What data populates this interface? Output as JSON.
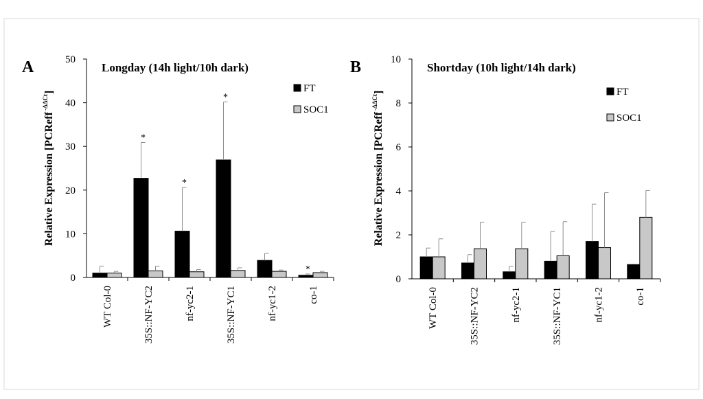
{
  "chart_data": [
    {
      "type": "bar",
      "panel": "A",
      "title": "Longday (14h light/10h dark)",
      "ylabel": "Relative Expression [PCReff",
      "ylabel_sup": "-ΔΔCt",
      "ylabel_close": "]",
      "ylim": [
        0,
        50
      ],
      "yticks": [
        0,
        10,
        20,
        30,
        40,
        50
      ],
      "categories": [
        "WT   Col-0",
        "35S::NF-YC2",
        "nf-yc2-1",
        "35S::NF-YC1",
        "nf-yc1-2",
        "co-1"
      ],
      "series": [
        {
          "name": "FT",
          "color": "#000000",
          "values": [
            1.0,
            22.7,
            10.6,
            26.9,
            3.9,
            0.5
          ],
          "errors": [
            1.6,
            8.2,
            10.0,
            13.3,
            1.6,
            0.3
          ]
        },
        {
          "name": "SOC1",
          "color": "#c8c8c8",
          "values": [
            1.0,
            1.5,
            1.3,
            1.6,
            1.4,
            1.1
          ],
          "errors": [
            0.4,
            1.1,
            0.5,
            0.6,
            0.3,
            0.3
          ]
        }
      ],
      "annotations": [
        {
          "text": "*",
          "series": "FT",
          "category": "35S::NF-YC2"
        },
        {
          "text": "*",
          "series": "FT",
          "category": "nf-yc2-1"
        },
        {
          "text": "*",
          "series": "FT",
          "category": "35S::NF-YC1"
        },
        {
          "text": "*",
          "series": "FT",
          "category": "co-1"
        }
      ],
      "legend": "top-right"
    },
    {
      "type": "bar",
      "panel": "B",
      "title": "Shortday (10h light/14h dark)",
      "ylabel": "Relative Expression [PCReff",
      "ylabel_sup": "-ΔΔCt",
      "ylabel_close": "]",
      "ylim": [
        0,
        10
      ],
      "yticks": [
        0,
        2,
        4,
        6,
        8,
        10
      ],
      "categories": [
        "WT   Col-0",
        "35S::NF-YC2",
        "nf-yc2-1",
        "35S::NF-YC1",
        "nf-yc1-2",
        "co-1"
      ],
      "series": [
        {
          "name": "FT",
          "color": "#000000",
          "values": [
            1.0,
            0.72,
            0.32,
            0.8,
            1.7,
            0.65
          ],
          "errors": [
            0.4,
            0.38,
            0.25,
            1.35,
            1.7,
            0
          ]
        },
        {
          "name": "SOC1",
          "color": "#c8c8c8",
          "values": [
            1.0,
            1.37,
            1.37,
            1.05,
            1.42,
            2.8
          ],
          "errors": [
            0.82,
            1.21,
            1.21,
            1.55,
            2.5,
            1.22
          ]
        }
      ],
      "annotations": [],
      "legend": "top-right"
    }
  ]
}
